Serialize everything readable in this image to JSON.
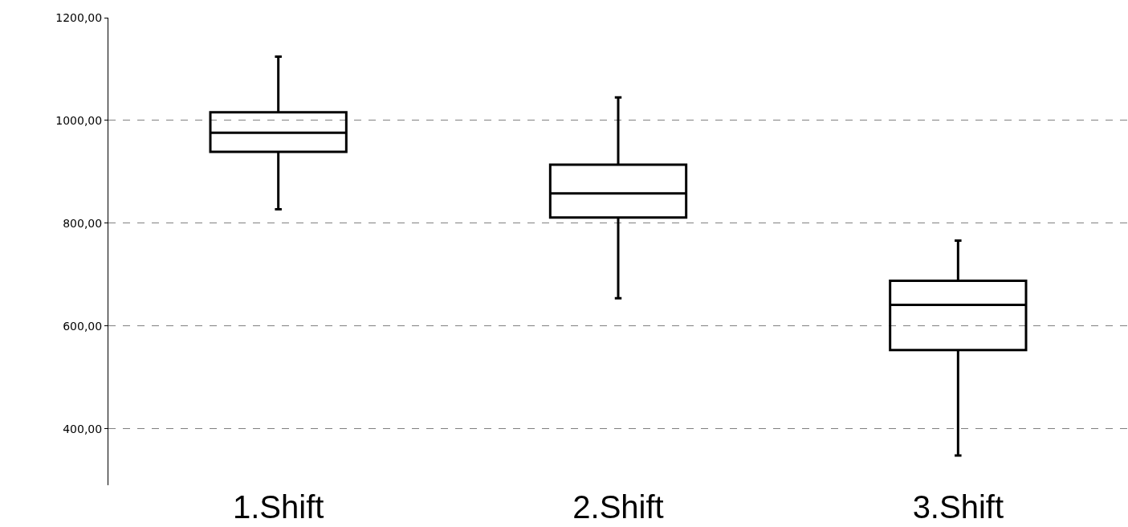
{
  "chart_data": {
    "type": "box",
    "categories": [
      "1.Shift",
      "2.Shift",
      "3.Shift"
    ],
    "boxes": [
      {
        "low": 827,
        "q1": 939,
        "median": 976,
        "q3": 1016,
        "high": 1124
      },
      {
        "low": 654,
        "q1": 811,
        "median": 858,
        "q3": 914,
        "high": 1045
      },
      {
        "low": 348,
        "q1": 553,
        "median": 641,
        "q3": 688,
        "high": 766
      }
    ],
    "color": "#000000",
    "ylim": [
      290,
      1200
    ],
    "yticks": [
      {
        "value": 400,
        "label": "400,00"
      },
      {
        "value": 600,
        "label": "600,00"
      },
      {
        "value": 800,
        "label": "800,00"
      },
      {
        "value": 1000,
        "label": "1000,00"
      },
      {
        "value": 1200,
        "label": "1200,00"
      }
    ],
    "grid": "y"
  }
}
